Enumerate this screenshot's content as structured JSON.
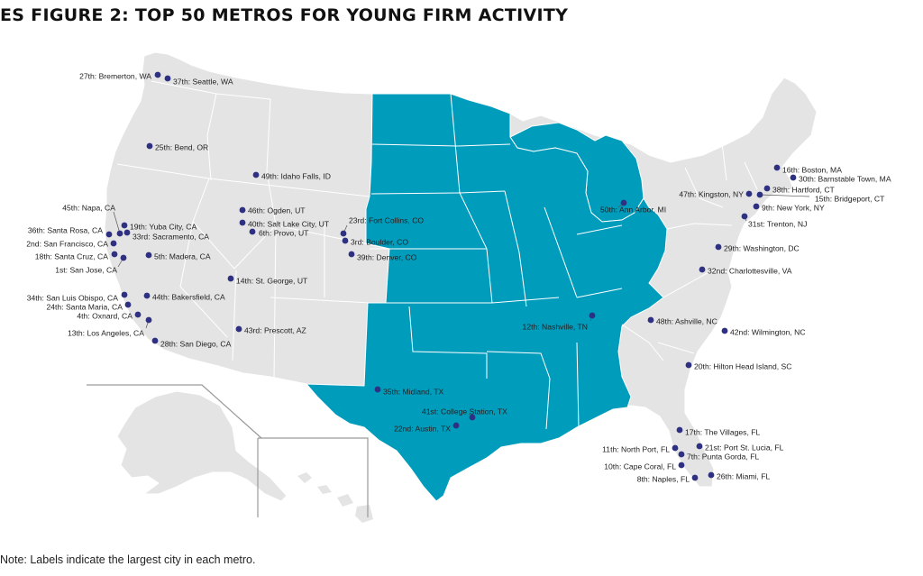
{
  "title": "ES FIGURE 2: TOP 50 METROS FOR YOUNG FIRM ACTIVITY",
  "note": "Note: Labels indicate the largest city in each metro.",
  "colors": {
    "land": "#e4e4e4",
    "highlight": "#009cbc",
    "border": "#ffffff",
    "marker": "#2e3082",
    "inset_line": "#9a9a9a"
  },
  "metros": [
    {
      "label": "1st: San Jose, CA"
    },
    {
      "label": "2nd: San Francisco, CA"
    },
    {
      "label": "3rd: Boulder, CO"
    },
    {
      "label": "4th: Oxnard, CA"
    },
    {
      "label": "5th: Madera, CA"
    },
    {
      "label": "6th: Provo, UT"
    },
    {
      "label": "7th: Punta Gorda, FL"
    },
    {
      "label": "8th: Naples, FL"
    },
    {
      "label": "9th: New York, NY"
    },
    {
      "label": "10th: Cape Coral, FL"
    },
    {
      "label": "11th: North Port, FL"
    },
    {
      "label": "12th: Nashville, TN"
    },
    {
      "label": "13th: Los Angeles, CA"
    },
    {
      "label": "14th: St. George, UT"
    },
    {
      "label": "15th: Bridgeport, CT"
    },
    {
      "label": "16th: Boston, MA"
    },
    {
      "label": "17th: The Villages, FL"
    },
    {
      "label": "18th: Santa Cruz, CA"
    },
    {
      "label": "19th: Yuba City, CA"
    },
    {
      "label": "20th: Hilton Head Island, SC"
    },
    {
      "label": "21st: Port St. Lucia, FL"
    },
    {
      "label": "22nd: Austin, TX"
    },
    {
      "label": "23rd: Fort Collins, CO"
    },
    {
      "label": "24th: Santa Maria, CA"
    },
    {
      "label": "25th: Bend, OR"
    },
    {
      "label": "26th: Miami, FL"
    },
    {
      "label": "27th: Bremerton, WA"
    },
    {
      "label": "28th: San Diego, CA"
    },
    {
      "label": "29th: Washington, DC"
    },
    {
      "label": "30th: Barnstable Town, MA"
    },
    {
      "label": "31st: Trenton, NJ"
    },
    {
      "label": "32nd: Charlottesville, VA"
    },
    {
      "label": "33rd: Sacramento, CA"
    },
    {
      "label": "34th: San Luis Obispo, CA"
    },
    {
      "label": "35th: Midland, TX"
    },
    {
      "label": "36th: Santa Rosa, CA"
    },
    {
      "label": "37th: Seattle, WA"
    },
    {
      "label": "38th: Hartford, CT"
    },
    {
      "label": "39th: Denver, CO"
    },
    {
      "label": "40th: Salt Lake City, UT"
    },
    {
      "label": "41st: College Station, TX"
    },
    {
      "label": "42nd: Wilmington, NC"
    },
    {
      "label": "43rd: Prescott, AZ"
    },
    {
      "label": "44th: Bakersfield, CA"
    },
    {
      "label": "45th: Napa, CA"
    },
    {
      "label": "46th: Ogden, UT"
    },
    {
      "label": "47th: Kingston, NY"
    },
    {
      "label": "48th: Ashville, NC"
    },
    {
      "label": "49th: Idaho Falls, ID"
    },
    {
      "label": "50th: Ann Arbor, MI"
    }
  ]
}
